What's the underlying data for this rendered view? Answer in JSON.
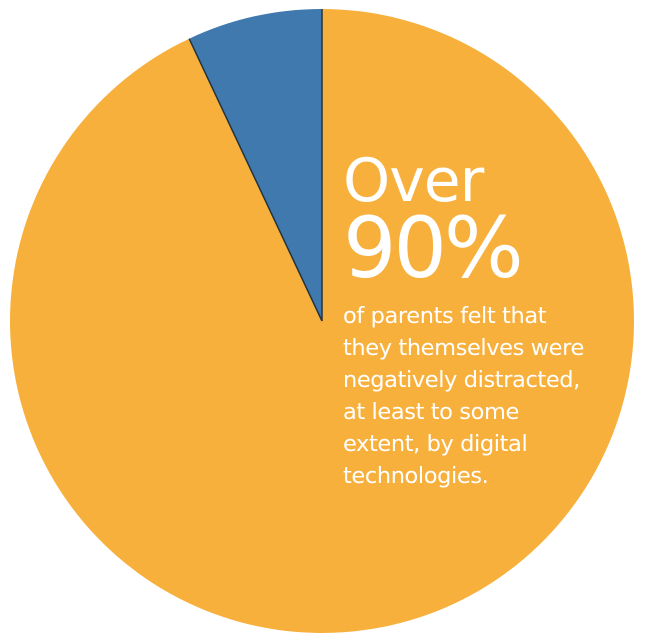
{
  "chart_data": {
    "type": "pie",
    "slices": [
      {
        "value": 93,
        "color": "#f8b03d"
      },
      {
        "value": 7,
        "color": "#3f79ad"
      }
    ]
  },
  "text": {
    "over": "Over",
    "percent": "90%",
    "lines": [
      "of parents felt that",
      "they themselves were",
      "negatively distracted,",
      "at least to some",
      "extent, by digital",
      "technologies."
    ]
  },
  "colors": {
    "text": "#ffffff",
    "divider": "#23343f"
  }
}
